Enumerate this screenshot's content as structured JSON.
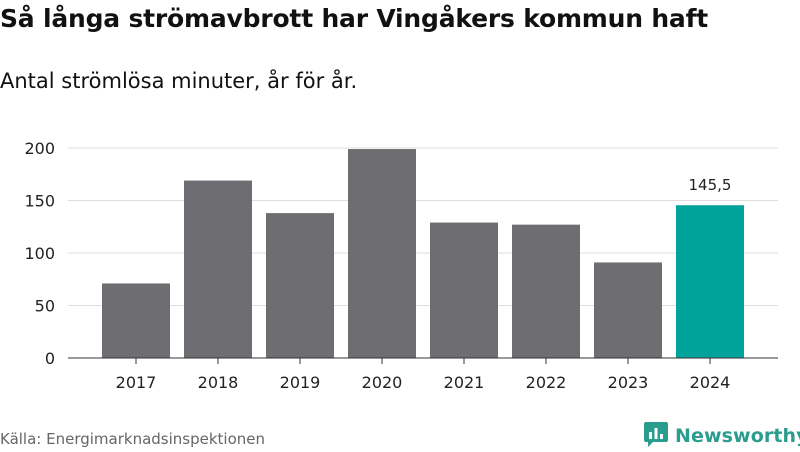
{
  "title": "Så långa strömavbrott har Vingåkers kommun haft",
  "subtitle": "Antal strömlösa minuter, år för år.",
  "source": "Källa: Energimarknadsinspektionen",
  "brand": {
    "name": "Newsworthy",
    "logo_icon": "newsworthy-logo-icon",
    "color": "#2a9d8f"
  },
  "colors": {
    "bar": "#6e6d72",
    "highlight": "#00a39a",
    "grid": "#dddddd",
    "axis": "#333333"
  },
  "chart_data": {
    "type": "bar",
    "title": "Så långa strömavbrott har Vingåkers kommun haft",
    "subtitle": "Antal strömlösa minuter, år för år.",
    "xlabel": "",
    "ylabel": "",
    "categories": [
      "2017",
      "2018",
      "2019",
      "2020",
      "2021",
      "2022",
      "2023",
      "2024"
    ],
    "values": [
      71,
      169,
      138,
      199,
      129,
      127,
      91,
      145.5
    ],
    "highlight_index": 7,
    "data_labels": [
      {
        "index": 7,
        "text": "145,5"
      }
    ],
    "yticks": [
      0,
      50,
      100,
      150,
      200
    ],
    "ytick_labels": [
      "0",
      "50",
      "100",
      "150",
      "200"
    ],
    "ylim": [
      0,
      200
    ],
    "grid": true,
    "legend": "none"
  }
}
